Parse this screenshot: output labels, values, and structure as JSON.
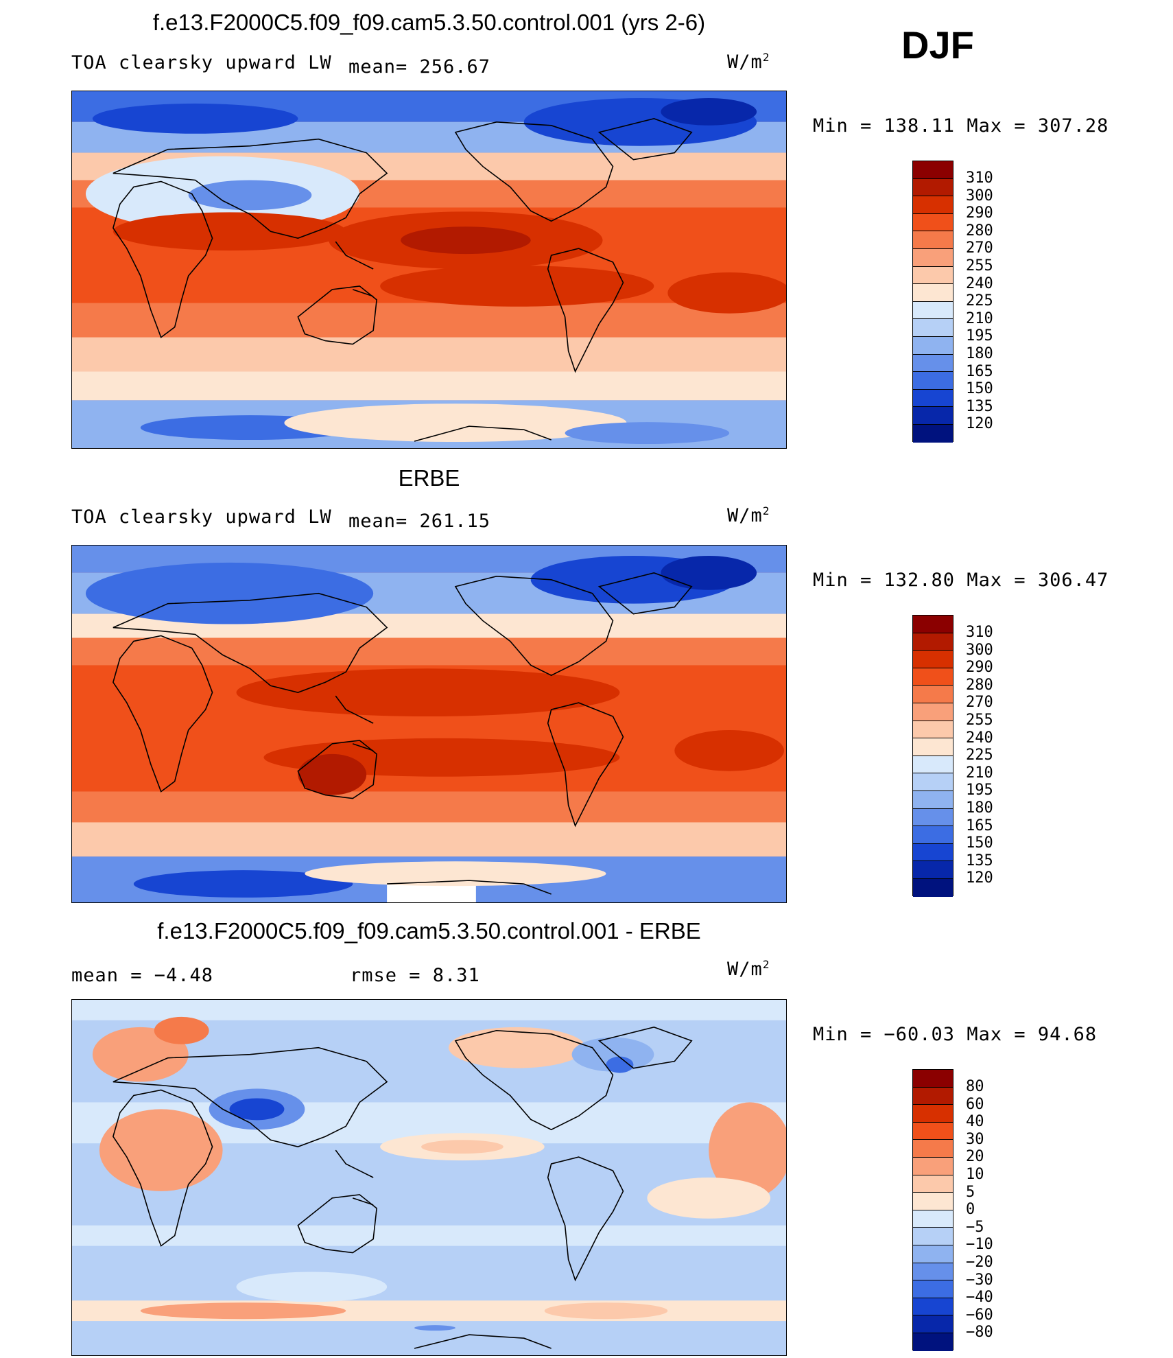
{
  "season": "DJF",
  "panels": [
    {
      "id": "model",
      "title": "f.e13.F2000C5.f09_f09.cam5.3.50.control.001 (yrs 2-6)",
      "left_label": "TOA clearsky upward LW",
      "mid_label": "mean= 256.67",
      "units_base": "W/m",
      "units_exp": "2",
      "minmax": "Min = 138.11 Max = 307.28",
      "colorbar_labels": [
        "310",
        "300",
        "290",
        "280",
        "270",
        "255",
        "240",
        "225",
        "210",
        "195",
        "180",
        "165",
        "150",
        "135",
        "120"
      ],
      "colorbar_colors": [
        "#8b0000",
        "#b21a00",
        "#d73000",
        "#f0501a",
        "#f57a4a",
        "#f9a07a",
        "#fcc9ab",
        "#fde6d2",
        "#d8e9fb",
        "#b6d0f6",
        "#8fb3f0",
        "#6690ea",
        "#3c6de3",
        "#1745d2",
        "#0727aa",
        "#00127e"
      ]
    },
    {
      "id": "obs",
      "title": "ERBE",
      "left_label": "TOA clearsky upward LW",
      "mid_label": "mean= 261.15",
      "units_base": "W/m",
      "units_exp": "2",
      "minmax": "Min = 132.80 Max = 306.47",
      "colorbar_labels": [
        "310",
        "300",
        "290",
        "280",
        "270",
        "255",
        "240",
        "225",
        "210",
        "195",
        "180",
        "165",
        "150",
        "135",
        "120"
      ],
      "colorbar_colors": [
        "#8b0000",
        "#b21a00",
        "#d73000",
        "#f0501a",
        "#f57a4a",
        "#f9a07a",
        "#fcc9ab",
        "#fde6d2",
        "#d8e9fb",
        "#b6d0f6",
        "#8fb3f0",
        "#6690ea",
        "#3c6de3",
        "#1745d2",
        "#0727aa",
        "#00127e"
      ]
    },
    {
      "id": "diff",
      "title": "f.e13.F2000C5.f09_f09.cam5.3.50.control.001 - ERBE",
      "left_label": "mean =   −4.48",
      "mid_label": "rmse =    8.31",
      "units_base": "W/m",
      "units_exp": "2",
      "minmax": "Min = −60.03 Max =  94.68",
      "colorbar_labels": [
        "80",
        "60",
        "40",
        "30",
        "20",
        "10",
        "5",
        "0",
        "−5",
        "−10",
        "−20",
        "−30",
        "−40",
        "−60",
        "−80"
      ],
      "colorbar_colors": [
        "#8b0000",
        "#b21a00",
        "#d73000",
        "#f0501a",
        "#f57a4a",
        "#f9a07a",
        "#fcc9ab",
        "#fde6d2",
        "#d8e9fb",
        "#b6d0f6",
        "#8fb3f0",
        "#6690ea",
        "#3c6de3",
        "#1745d2",
        "#0727aa",
        "#00127e"
      ]
    }
  ]
}
